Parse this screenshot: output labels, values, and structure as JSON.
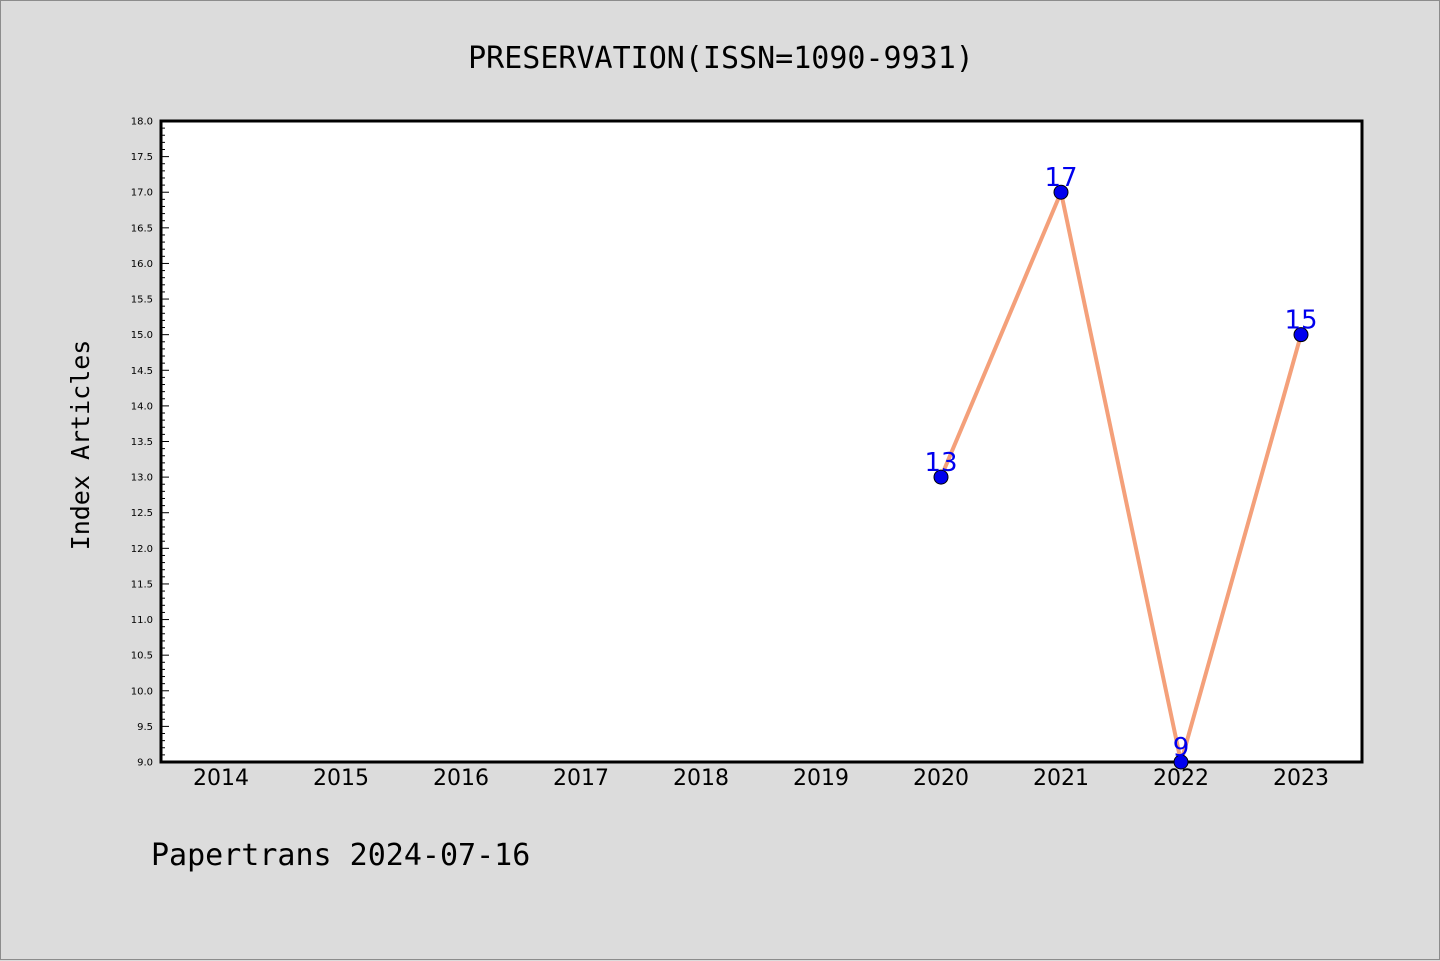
{
  "chart_data": {
    "type": "line",
    "title": "PRESERVATION(ISSN=1090-9931)",
    "xlabel": "",
    "ylabel": "Index Articles",
    "categories": [
      "2014",
      "2015",
      "2016",
      "2017",
      "2018",
      "2019",
      "2020",
      "2021",
      "2022",
      "2023"
    ],
    "series": [
      {
        "x": [
          "2020",
          "2021",
          "2022",
          "2023"
        ],
        "values": [
          13,
          17,
          9,
          15
        ],
        "data_labels": [
          "13",
          "17",
          "9",
          "15"
        ],
        "line_color": "#f4a07a",
        "marker_color": "#0000ee",
        "label_color": "#0000ee"
      }
    ],
    "ylim": [
      9.0,
      18.0
    ],
    "y_ticks": [
      "9.0",
      "9.5",
      "10.0",
      "10.5",
      "11.0",
      "11.5",
      "12.0",
      "12.5",
      "13.0",
      "13.5",
      "14.0",
      "14.5",
      "15.0",
      "15.5",
      "16.0",
      "16.5",
      "17.0",
      "17.5",
      "18.0"
    ],
    "grid": false,
    "legend": "none"
  },
  "footer": "Papertrans 2024-07-16",
  "colors": {
    "background": "#dcdcdc",
    "plot_background": "#ffffff",
    "axis": "#000000"
  }
}
